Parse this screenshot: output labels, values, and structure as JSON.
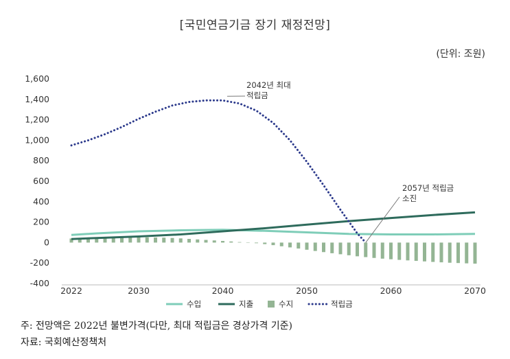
{
  "header": {
    "title": "[국민연금기금 장기 재정전망]",
    "unit": "(단위: 조원)"
  },
  "footer": {
    "note": "주: 전망액은 2022년 불변가격(다만, 최대 적립금은 경상가격 기준)",
    "source": "자료: 국회예산정책처"
  },
  "chart_data": {
    "type": "line",
    "ylim": [
      -400,
      1600
    ],
    "xlim": [
      2022,
      2070
    ],
    "yticks": [
      "1,600",
      "1,400",
      "1,200",
      "1,000",
      "800",
      "600",
      "400",
      "200",
      "0",
      "-200",
      "-400"
    ],
    "ytick_values": [
      1600,
      1400,
      1200,
      1000,
      800,
      600,
      400,
      200,
      0,
      -200,
      -400
    ],
    "xticks": [
      "2022",
      "2030",
      "2040",
      "2050",
      "2060",
      "2070"
    ],
    "xtick_values": [
      2022,
      2030,
      2040,
      2050,
      2060,
      2070
    ],
    "grid": false,
    "legend_position": "bottom",
    "colors": {
      "income": "#7ecdb8",
      "expenditure": "#2e6b5c",
      "balance": "#94b594",
      "fund": "#2c3a8c"
    },
    "series": [
      {
        "name": "수입",
        "key": "income",
        "type": "line",
        "x": [
          2022,
          2025,
          2030,
          2035,
          2040,
          2045,
          2050,
          2055,
          2060,
          2065,
          2070
        ],
        "y": [
          75,
          90,
          110,
          120,
          125,
          115,
          100,
          85,
          80,
          80,
          85
        ]
      },
      {
        "name": "지출",
        "key": "expenditure",
        "type": "line",
        "x": [
          2022,
          2025,
          2030,
          2035,
          2040,
          2045,
          2050,
          2055,
          2060,
          2065,
          2070
        ],
        "y": [
          35,
          45,
          60,
          80,
          110,
          140,
          175,
          210,
          240,
          270,
          295
        ]
      },
      {
        "name": "수지",
        "key": "balance",
        "type": "bar",
        "x": [
          2022,
          2023,
          2024,
          2025,
          2026,
          2027,
          2028,
          2029,
          2030,
          2031,
          2032,
          2033,
          2034,
          2035,
          2036,
          2037,
          2038,
          2039,
          2040,
          2041,
          2042,
          2043,
          2044,
          2045,
          2046,
          2047,
          2048,
          2049,
          2050,
          2051,
          2052,
          2053,
          2054,
          2055,
          2056,
          2057,
          2058,
          2059,
          2060,
          2061,
          2062,
          2063,
          2064,
          2065,
          2066,
          2067,
          2068,
          2069,
          2070
        ],
        "y": [
          40,
          42,
          44,
          46,
          48,
          50,
          51,
          52,
          52,
          51,
          50,
          48,
          45,
          41,
          36,
          31,
          26,
          21,
          16,
          11,
          5,
          0,
          -6,
          -15,
          -25,
          -36,
          -47,
          -58,
          -70,
          -82,
          -93,
          -104,
          -114,
          -124,
          -134,
          -142,
          -150,
          -157,
          -163,
          -169,
          -174,
          -179,
          -184,
          -189,
          -193,
          -197,
          -200,
          -203,
          -206
        ]
      },
      {
        "name": "적립금",
        "key": "fund",
        "type": "dotted-line",
        "x": [
          2022,
          2024,
          2026,
          2028,
          2030,
          2032,
          2034,
          2036,
          2038,
          2040,
          2042,
          2044,
          2046,
          2048,
          2050,
          2052,
          2054,
          2056,
          2057
        ],
        "y": [
          950,
          1000,
          1060,
          1130,
          1210,
          1280,
          1340,
          1375,
          1390,
          1390,
          1360,
          1290,
          1170,
          1000,
          790,
          560,
          320,
          90,
          0
        ]
      }
    ],
    "annotations": [
      {
        "text_lines": [
          "2042년 최대",
          "적립금"
        ],
        "x": 2042,
        "y": 1390
      },
      {
        "text_lines": [
          "2057년 적립금",
          "소진"
        ],
        "x": 2057,
        "y": 0
      }
    ]
  }
}
